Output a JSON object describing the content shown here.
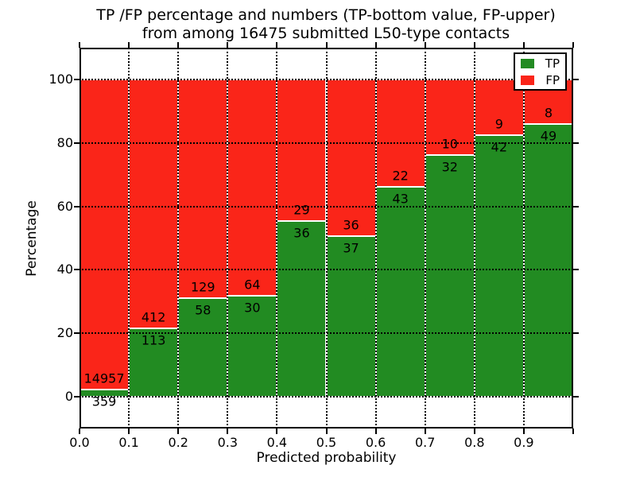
{
  "title": {
    "line1": "TP /FP percentage and numbers (TP-bottom value, FP-upper)",
    "line2": "from among 16475 submitted L50-type contacts"
  },
  "axes": {
    "xlabel": "Predicted probability",
    "ylabel": "Percentage",
    "x_tick_labels": [
      "0.0",
      "0.1",
      "0.2",
      "0.3",
      "0.4",
      "0.5",
      "0.6",
      "0.7",
      "0.8",
      "0.9"
    ],
    "y_tick_labels": [
      "0",
      "20",
      "40",
      "60",
      "80",
      "100"
    ]
  },
  "legend": {
    "position": "upper right",
    "entries": [
      {
        "label": "TP",
        "color": "#228b22"
      },
      {
        "label": "FP",
        "color": "#fa2519"
      }
    ]
  },
  "colors": {
    "tp_green": "#228b22",
    "fp_red": "#fa2519",
    "text": "#000000",
    "background": "#ffffff"
  },
  "chart_data": {
    "type": "bar",
    "stacked": true,
    "normalized_to_percent": 100,
    "title": "TP /FP percentage and numbers (TP-bottom value, FP-upper) from among 16475 submitted L50-type contacts",
    "xlabel": "Predicted probability",
    "ylabel": "Percentage",
    "bin_start": [
      0.0,
      0.1,
      0.2,
      0.3,
      0.4,
      0.5,
      0.6,
      0.7,
      0.8,
      0.9
    ],
    "bin_width": 0.1,
    "series": [
      {
        "name": "TP",
        "color": "#228b22",
        "counts": [
          359,
          113,
          58,
          30,
          36,
          37,
          43,
          32,
          42,
          49
        ]
      },
      {
        "name": "FP",
        "color": "#fa2519",
        "counts": [
          14957,
          412,
          129,
          64,
          29,
          36,
          22,
          10,
          9,
          8
        ]
      }
    ],
    "total_contacts": 16475,
    "xlim": [
      0.0,
      1.0
    ],
    "ylim": [
      -10,
      110
    ],
    "x_ticks": [
      0.0,
      0.1,
      0.2,
      0.3,
      0.4,
      0.5,
      0.6,
      0.7,
      0.8,
      0.9
    ],
    "y_ticks": [
      0,
      20,
      40,
      60,
      80,
      100
    ],
    "grid": true,
    "grid_style": "dotted"
  }
}
